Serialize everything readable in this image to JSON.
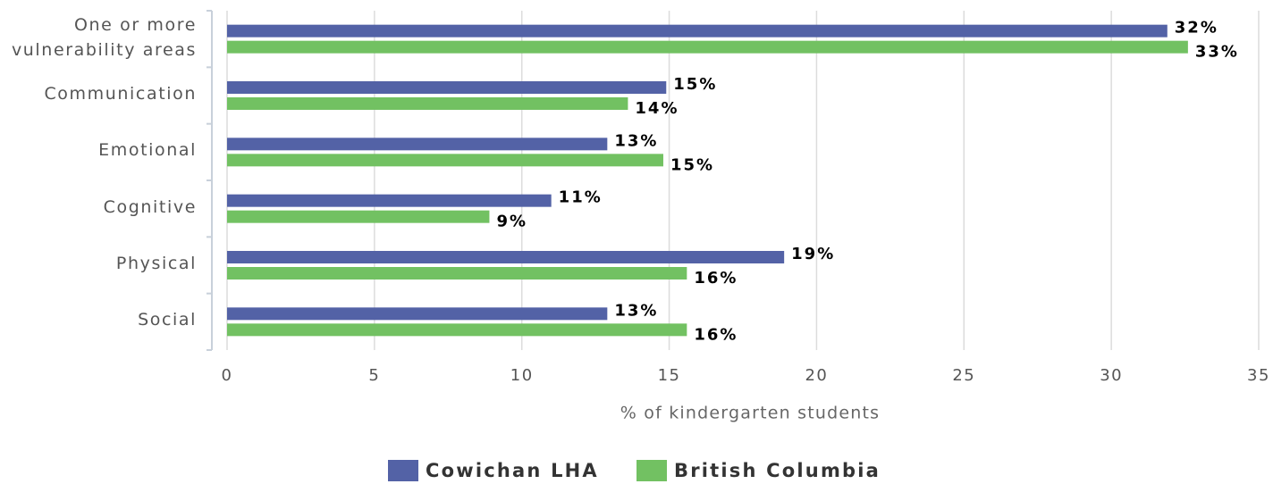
{
  "chart_data": {
    "type": "hbar",
    "x_label": "% of kindergarten students",
    "categories": [
      "One or more vulnerability areas",
      "Communication",
      "Emotional",
      "Cognitive",
      "Physical",
      "Social"
    ],
    "series": [
      {
        "name": "Cowichan LHA",
        "color": "#5362a6",
        "values": [
          31.9,
          14.9,
          12.9,
          11.0,
          18.9,
          12.9
        ],
        "value_labels": [
          "32%",
          "15%",
          "13%",
          "11%",
          "19%",
          "13%"
        ]
      },
      {
        "name": "British Columbia",
        "color": "#72c162",
        "values": [
          32.6,
          13.6,
          14.8,
          8.9,
          15.6,
          15.6
        ],
        "value_labels": [
          "33%",
          "14%",
          "15%",
          "9%",
          "16%",
          "16%"
        ]
      }
    ],
    "xlim": [
      0,
      35
    ],
    "xticks": [
      0,
      5,
      10,
      15,
      20,
      25,
      30,
      35
    ],
    "grid": true
  }
}
